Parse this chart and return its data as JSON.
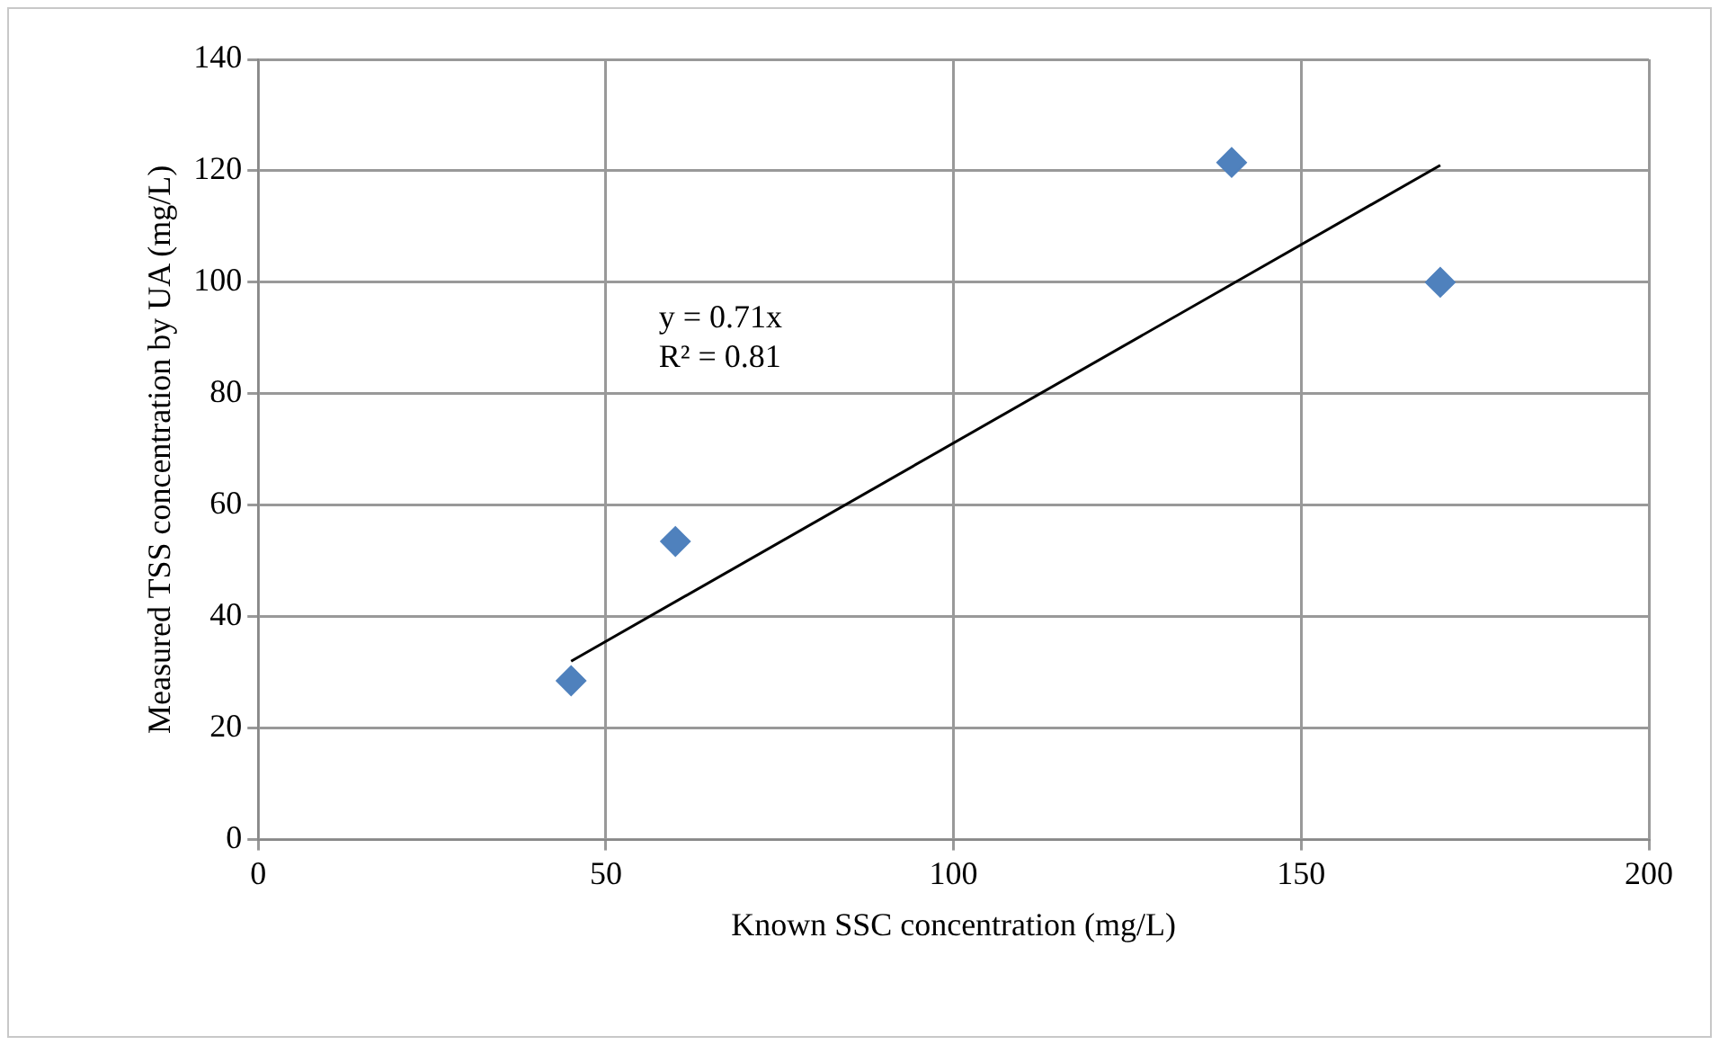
{
  "chart_data": {
    "type": "scatter",
    "xlabel": "Known SSC concentration (mg/L)",
    "ylabel": "Measured TSS concentration by UA (mg/L)",
    "xlim": [
      0,
      200
    ],
    "xticks": [
      0,
      50,
      100,
      150,
      200
    ],
    "ylim": [
      0,
      140
    ],
    "yticks": [
      0,
      20,
      40,
      60,
      80,
      100,
      120,
      140
    ],
    "grid": true,
    "marker": "diamond",
    "series": [
      {
        "color": "#4f81bd",
        "x": [
          45,
          60,
          140,
          170
        ],
        "values": [
          28.5,
          53.5,
          121.5,
          100
        ]
      },
      {
        "type": "line",
        "color": "#000000",
        "marker": "none",
        "x": [
          45,
          170
        ],
        "values": [
          32,
          121
        ]
      }
    ],
    "annotations": [
      "y = 0.71x",
      "R² = 0.81"
    ]
  }
}
